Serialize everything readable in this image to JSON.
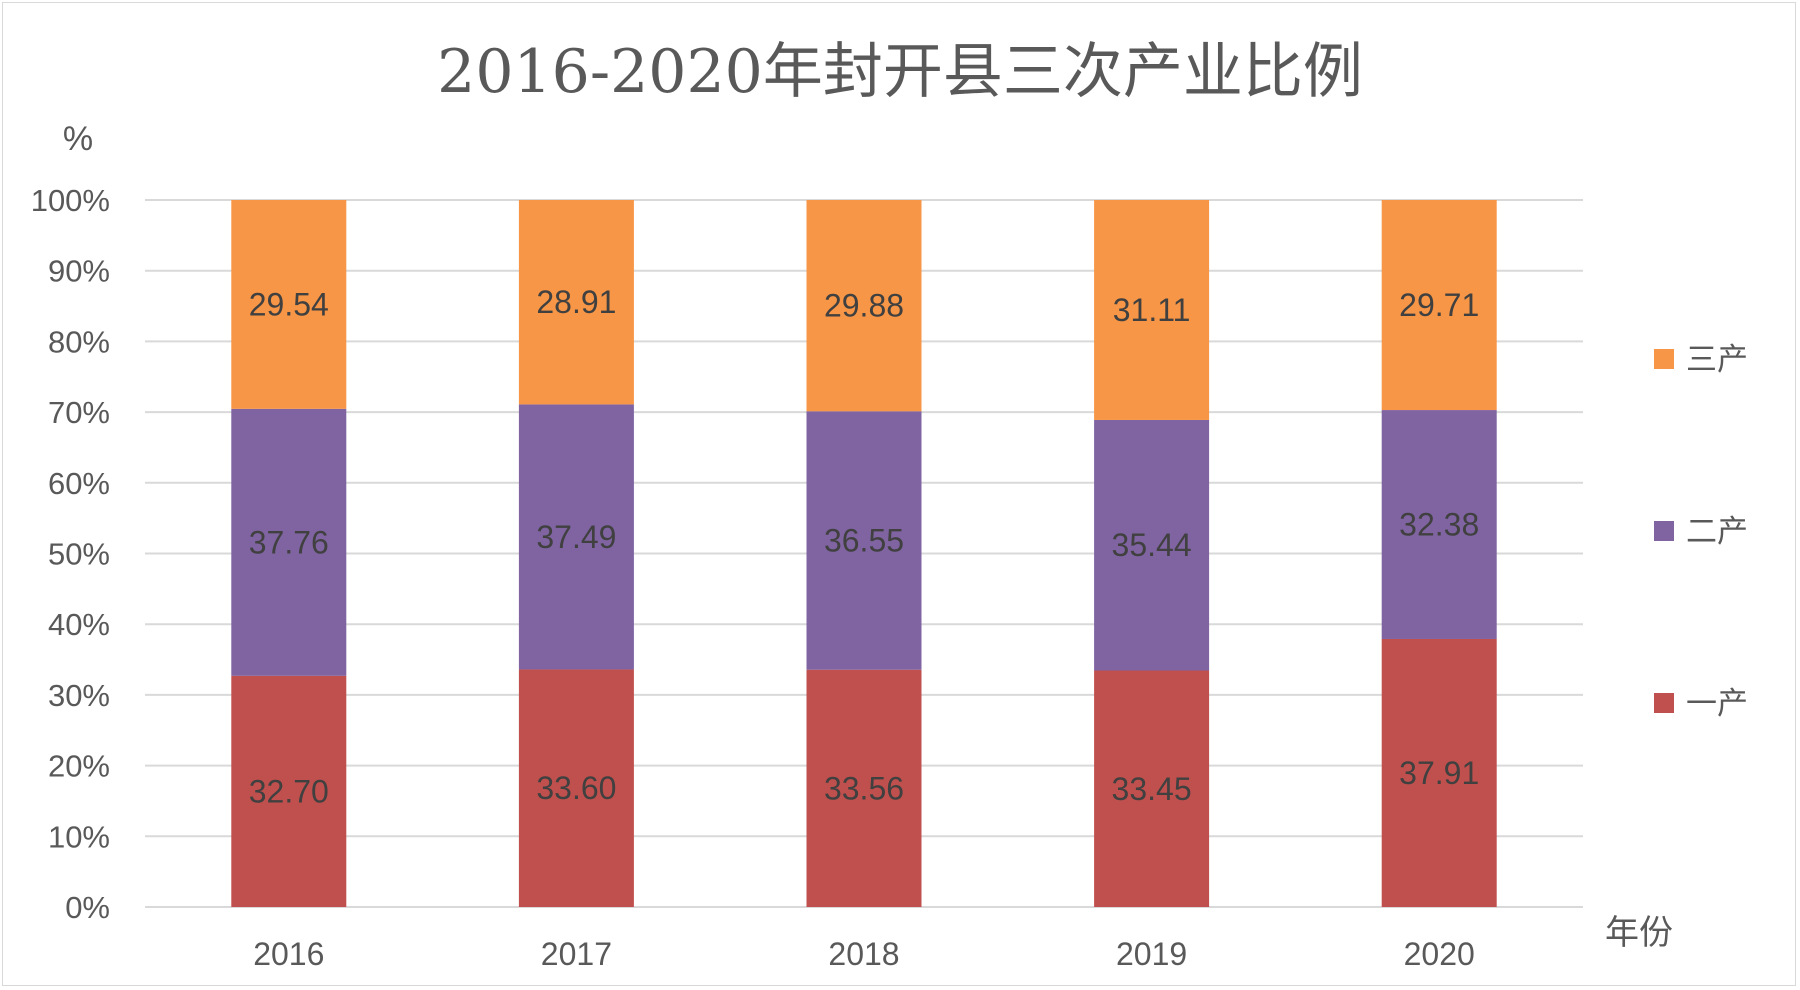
{
  "chart_data": {
    "type": "bar",
    "stacked": true,
    "title": "2016-2020年封开县三次产业比例",
    "ylabel": "%",
    "xlabel": "年份",
    "ylim": [
      0,
      100
    ],
    "yticks": [
      "0%",
      "10%",
      "20%",
      "30%",
      "40%",
      "50%",
      "60%",
      "70%",
      "80%",
      "90%",
      "100%"
    ],
    "categories": [
      "2016",
      "2017",
      "2018",
      "2019",
      "2020"
    ],
    "series": [
      {
        "name": "一产",
        "color": "#c0504d",
        "values": [
          32.7,
          33.6,
          33.56,
          33.45,
          37.91
        ],
        "labels": [
          "32.70",
          "33.60",
          "33.56",
          "33.45",
          "37.91"
        ]
      },
      {
        "name": "二产",
        "color": "#8064a2",
        "values": [
          37.76,
          37.49,
          36.55,
          35.44,
          32.38
        ],
        "labels": [
          "37.76",
          "37.49",
          "36.55",
          "35.44",
          "32.38"
        ]
      },
      {
        "name": "三产",
        "color": "#f79646",
        "values": [
          29.54,
          28.91,
          29.88,
          31.11,
          29.71
        ],
        "labels": [
          "29.54",
          "28.91",
          "29.88",
          "31.11",
          "29.71"
        ]
      }
    ],
    "grid": true,
    "legend_position": "right"
  }
}
